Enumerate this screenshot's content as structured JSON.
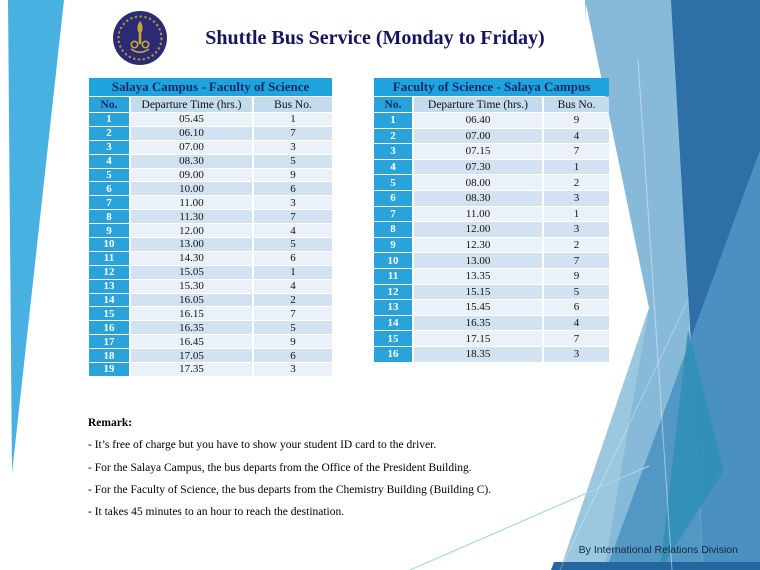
{
  "slide": {
    "title": "Shuttle Bus Service (Monday to Friday)",
    "logo": "mahidol-university-emblem",
    "footer": "By International Relations Division"
  },
  "colors": {
    "left_accent_stripe": "#49B1E2",
    "table_title_blue": "#1EA3DC",
    "number_column_blue": "#29A3DA",
    "column_header_bg": "#C3DBEC",
    "row_light": "#EAF1F8",
    "row_shaded": "#D2E2F0",
    "title_navy": "#15155F",
    "facet_light_blue": "#86BAD8",
    "facet_medium_blue": "#4E93C3",
    "facet_dark_blue": "#2F6FA8",
    "facet_teal": "#2E8FB5",
    "bottom_strip_blue": "#2566A0",
    "logo_navy": "#2B2B74",
    "logo_gold": "#C9A437"
  },
  "tables": [
    {
      "title": "Salaya Campus - Faculty of Science",
      "columns": [
        "No.",
        "Departure Time (hrs.)",
        "Bus No."
      ],
      "rows": [
        [
          "1",
          "05.45",
          "1"
        ],
        [
          "2",
          "06.10",
          "7"
        ],
        [
          "3",
          "07.00",
          "3"
        ],
        [
          "4",
          "08.30",
          "5"
        ],
        [
          "5",
          "09.00",
          "9"
        ],
        [
          "6",
          "10.00",
          "6"
        ],
        [
          "7",
          "11.00",
          "3"
        ],
        [
          "8",
          "11.30",
          "7"
        ],
        [
          "9",
          "12.00",
          "4"
        ],
        [
          "10",
          "13.00",
          "5"
        ],
        [
          "11",
          "14.30",
          "6"
        ],
        [
          "12",
          "15.05",
          "1"
        ],
        [
          "13",
          "15.30",
          "4"
        ],
        [
          "14",
          "16.05",
          "2"
        ],
        [
          "15",
          "16.15",
          "7"
        ],
        [
          "16",
          "16.35",
          "5"
        ],
        [
          "17",
          "16.45",
          "9"
        ],
        [
          "18",
          "17.05",
          "6"
        ],
        [
          "19",
          "17.35",
          "3"
        ]
      ]
    },
    {
      "title": "Faculty of Science - Salaya Campus",
      "columns": [
        "No.",
        "Departure Time (hrs.)",
        "Bus No."
      ],
      "rows": [
        [
          "1",
          "06.40",
          "9"
        ],
        [
          "2",
          "07.00",
          "4"
        ],
        [
          "3",
          "07.15",
          "7"
        ],
        [
          "4",
          "07.30",
          "1"
        ],
        [
          "5",
          "08.00",
          "2"
        ],
        [
          "6",
          "08.30",
          "3"
        ],
        [
          "7",
          "11.00",
          "1"
        ],
        [
          "8",
          "12.00",
          "3"
        ],
        [
          "9",
          "12.30",
          "2"
        ],
        [
          "10",
          "13.00",
          "7"
        ],
        [
          "11",
          "13.35",
          "9"
        ],
        [
          "12",
          "15.15",
          "5"
        ],
        [
          "13",
          "15.45",
          "6"
        ],
        [
          "14",
          "16.35",
          "4"
        ],
        [
          "15",
          "17.15",
          "7"
        ],
        [
          "16",
          "18.35",
          "3"
        ]
      ]
    }
  ],
  "remark": {
    "heading": "Remark:",
    "lines": [
      "- It’s free of charge but you have to show your student ID card to the driver.",
      "- For the Salaya Campus, the bus departs from the Office of the President Building.",
      "- For the Faculty of Science, the bus departs from the Chemistry Building (Building C).",
      "- It takes 45 minutes  to an hour to reach the destination."
    ]
  }
}
